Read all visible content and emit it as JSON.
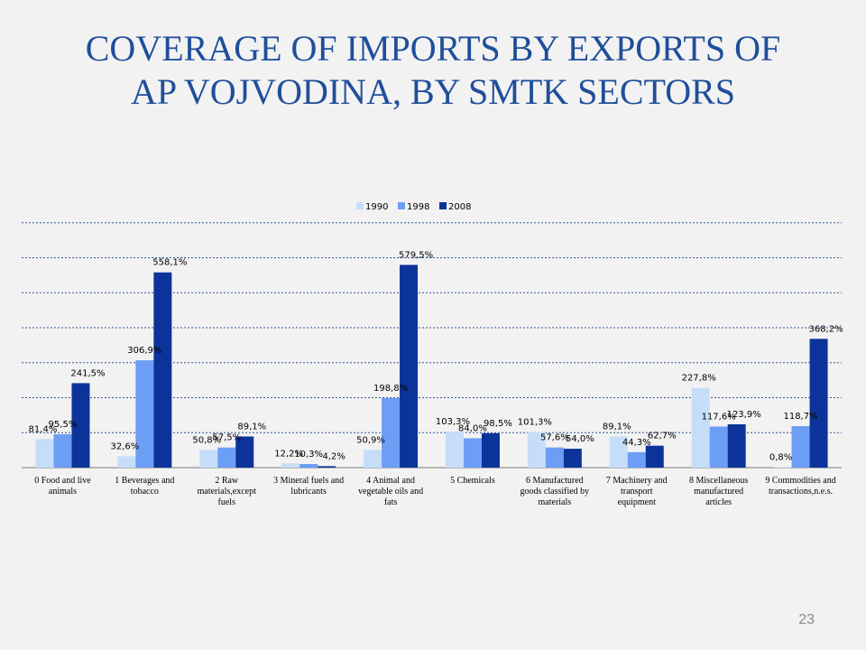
{
  "title": {
    "line1": "COVERAGE OF IMPORTS BY EXPORTS OF",
    "line2": "AP VOJVODINA, BY SMTK SECTORS"
  },
  "page_number": "23",
  "colors": {
    "1990": "#c5ddf8",
    "1998": "#6d9ef5",
    "2008": "#0c3399",
    "gridline": "#2f5597",
    "title": "#1f4e9a"
  },
  "chart_data": {
    "type": "bar",
    "title": "",
    "xlabel": "",
    "ylabel": "",
    "ylim": [
      0,
      700
    ],
    "grid": true,
    "legend_position": "top",
    "categories": [
      [
        "0 Food and live",
        "animals"
      ],
      [
        "1 Beverages and",
        "tobacco"
      ],
      [
        "2  Raw",
        "materials,except",
        "fuels"
      ],
      [
        "3  Mineral fuels and",
        "lubricants"
      ],
      [
        "4  Animal and",
        "vegetable oils and",
        "fats"
      ],
      [
        "5  Chemicals"
      ],
      [
        "6 Manufactured",
        "goods classified by",
        "materials"
      ],
      [
        "7 Machinery and",
        "transport",
        "equipment"
      ],
      [
        "8 Miscellaneous",
        "manufactured",
        "articles"
      ],
      [
        "9  Commodities and",
        "transactions,n.e.s."
      ]
    ],
    "series": [
      {
        "name": "1990",
        "values": [
          81.4,
          32.6,
          50.8,
          12.2,
          50.9,
          103.3,
          101.3,
          89.1,
          227.8,
          0.8
        ],
        "labels": [
          "81,4%",
          "32,6%",
          "50,8%",
          "12,2%",
          "50,9%",
          "103,3%",
          "101,3%",
          "89,1%",
          "227,8%",
          "0,8%"
        ]
      },
      {
        "name": "1998",
        "values": [
          95.5,
          306.9,
          57.5,
          10.3,
          198.8,
          84.0,
          57.6,
          44.3,
          117.6,
          118.7
        ],
        "labels": [
          "95,5%",
          "306,9%",
          "57,5%",
          "10,3%",
          "198,8%",
          "84,0%",
          "57,6%",
          "44,3%",
          "117,6%",
          "118,7%"
        ]
      },
      {
        "name": "2008",
        "values": [
          241.5,
          558.1,
          89.1,
          4.2,
          579.5,
          98.5,
          54.0,
          62.7,
          123.9,
          368.2
        ],
        "labels": [
          "241,5%",
          "558,1%",
          "89,1%",
          "4,2%",
          "579,5%",
          "98,5%",
          "54,0%",
          "62,7%",
          "123,9%",
          "368,2%"
        ]
      }
    ]
  }
}
